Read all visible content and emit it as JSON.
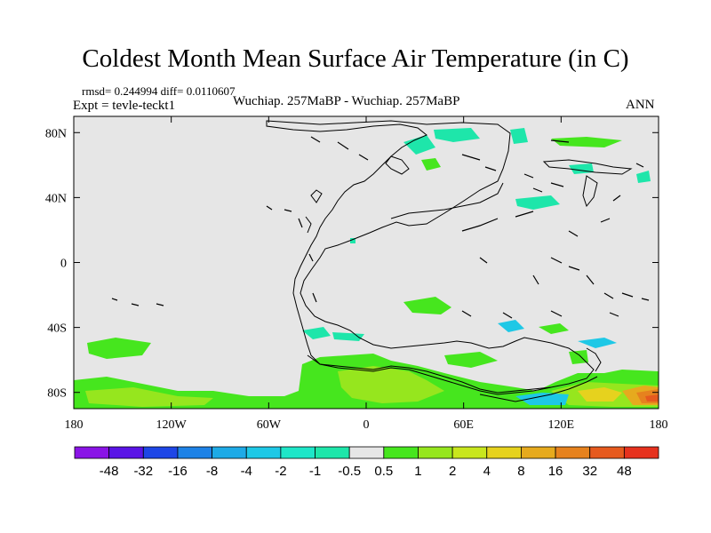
{
  "title": "Coldest Month Mean Surface Air Temperature (in C)",
  "stats": "rmsd= 0.244994  diff= 0.0110607",
  "experiment": "Expt = tevle-teckt1",
  "comparison": "Wuchiap. 257MaBP - Wuchiap. 257MaBP",
  "season": "ANN",
  "map": {
    "lon_range": [
      -180,
      180
    ],
    "lat_range": [
      -90,
      90
    ],
    "background_color": "#e6e6e6",
    "lat_ticks": [
      {
        "lat": 80,
        "label": "80N"
      },
      {
        "lat": 40,
        "label": "40N"
      },
      {
        "lat": 0,
        "label": "0"
      },
      {
        "lat": -40,
        "label": "40S"
      },
      {
        "lat": -80,
        "label": "80S"
      }
    ],
    "lon_ticks": [
      {
        "lon": -180,
        "label": "180"
      },
      {
        "lon": -120,
        "label": "120W"
      },
      {
        "lon": -60,
        "label": "60W"
      },
      {
        "lon": 0,
        "label": "0"
      },
      {
        "lon": 60,
        "label": "60E"
      },
      {
        "lon": 120,
        "label": "120E"
      },
      {
        "lon": 180,
        "label": "180"
      }
    ]
  },
  "colorbar": {
    "colors": [
      "#8a14e6",
      "#5a14e6",
      "#1e46e6",
      "#1e82e6",
      "#1eaae6",
      "#1ec8e6",
      "#1ee6c8",
      "#1ee6aa",
      "#e6e6e6",
      "#46e61e",
      "#96e61e",
      "#c8e61e",
      "#e6d21e",
      "#e6aa1e",
      "#e6821e",
      "#e65a1e",
      "#e6321e"
    ],
    "labels": [
      "-48",
      "-32",
      "-16",
      "-8",
      "-4",
      "-2",
      "-1",
      "-0.5",
      "0.5",
      "1",
      "2",
      "4",
      "8",
      "16",
      "32",
      "48"
    ]
  },
  "anomaly_colors": {
    "cool_light": "#1ee6aa",
    "cool_medium": "#1ec8e6",
    "cool_strong": "#1eaae6",
    "warm_light": "#46e61e",
    "warm_medium": "#96e61e",
    "warm_strong": "#c8e61e",
    "warm_hot": "#e6d21e",
    "warm_hotter": "#e6aa1e",
    "warm_hottest": "#e6821e",
    "warm_extreme": "#e65a1e",
    "warm_max": "#e6321e"
  }
}
